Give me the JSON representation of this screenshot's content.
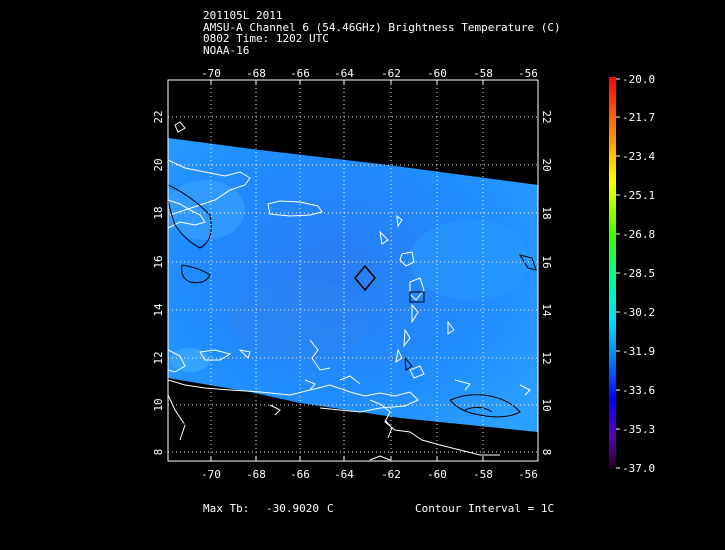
{
  "header": {
    "line1": "201105L 2011",
    "line2": "AMSU-A Channel 6 (54.46GHz) Brightness Temperature (C)",
    "line3": "0802 Time: 1202 UTC",
    "line4": "NOAA-16"
  },
  "map": {
    "lon_range": [
      -72,
      -56
    ],
    "lat_range": [
      7.7,
      23.2
    ],
    "lon_ticks": [
      "-70",
      "-68",
      "-66",
      "-64",
      "-62",
      "-60",
      "-58",
      "-56"
    ],
    "lat_ticks": [
      "8",
      "10",
      "12",
      "14",
      "16",
      "18",
      "20",
      "22"
    ],
    "swath_color": "#1e90ff",
    "coastline_color": "#ffffff",
    "contour_color": "#000000",
    "gridline_style": "dotted"
  },
  "colorbar": {
    "labels": [
      "-20.0",
      "-21.7",
      "-23.4",
      "-25.1",
      "-26.8",
      "-28.5",
      "-30.2",
      "-31.9",
      "-33.6",
      "-35.3",
      "-37.0"
    ],
    "colors": [
      "#ff0000",
      "#ff8000",
      "#ffff00",
      "#80ff00",
      "#00ff60",
      "#00ffff",
      "#00c0ff",
      "#0060ff",
      "#0000ff",
      "#6000b0",
      "#200020"
    ]
  },
  "footer": {
    "max_tb_label": "Max Tb:",
    "max_tb_value": "-30.9020",
    "max_tb_unit": "C",
    "contour_interval": "Contour Interval = 1C"
  }
}
